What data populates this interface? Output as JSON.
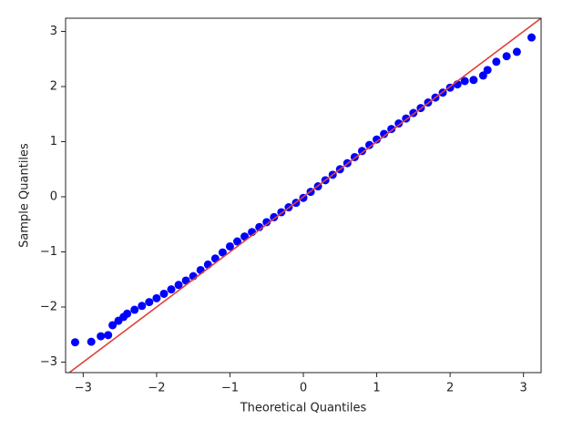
{
  "chart_data": {
    "type": "scatter",
    "x_label": "Theoretical Quantiles",
    "y_label": "Sample Quantiles",
    "xlim": [
      -3.24,
      3.24
    ],
    "ylim": [
      -3.19,
      3.24
    ],
    "xticks": [
      {
        "value": -3,
        "label": "−3"
      },
      {
        "value": -2,
        "label": "−2"
      },
      {
        "value": -1,
        "label": "−1"
      },
      0,
      1,
      2,
      3
    ],
    "yticks": [
      {
        "value": -3,
        "label": "−3"
      },
      {
        "value": -2,
        "label": "−2"
      },
      {
        "value": -1,
        "label": "−1"
      },
      0,
      1,
      2,
      3
    ],
    "series": [
      {
        "type": "scatter",
        "color": "#0000ff",
        "x": [
          -3.11,
          -2.89,
          -2.76,
          -2.66,
          -2.6,
          -2.52,
          -2.45,
          -2.4,
          -2.3,
          -2.2,
          -2.1,
          -2.0,
          -1.9,
          -1.8,
          -1.7,
          -1.6,
          -1.5,
          -1.4,
          -1.3,
          -1.2,
          -1.1,
          -1.0,
          -0.9,
          -0.8,
          -0.7,
          -0.6,
          -0.5,
          -0.4,
          -0.3,
          -0.2,
          -0.1,
          0,
          0.1,
          0.2,
          0.3,
          0.4,
          0.5,
          0.6,
          0.7,
          0.8,
          0.9,
          1.0,
          1.1,
          1.2,
          1.3,
          1.4,
          1.5,
          1.6,
          1.7,
          1.8,
          1.9,
          2.0,
          2.1,
          2.2,
          2.32,
          2.45,
          2.51,
          2.63,
          2.77,
          2.91,
          3.11
        ],
        "values": [
          -2.64,
          -2.63,
          -2.53,
          -2.51,
          -2.33,
          -2.25,
          -2.18,
          -2.12,
          -2.05,
          -1.98,
          -1.91,
          -1.84,
          -1.76,
          -1.68,
          -1.6,
          -1.52,
          -1.44,
          -1.33,
          -1.23,
          -1.12,
          -1.01,
          -0.9,
          -0.81,
          -0.72,
          -0.64,
          -0.55,
          -0.46,
          -0.37,
          -0.28,
          -0.19,
          -0.11,
          -0.02,
          0.09,
          0.19,
          0.3,
          0.4,
          0.5,
          0.61,
          0.72,
          0.83,
          0.94,
          1.04,
          1.14,
          1.23,
          1.33,
          1.42,
          1.52,
          1.61,
          1.71,
          1.8,
          1.89,
          1.98,
          2.04,
          2.1,
          2.12,
          2.2,
          2.3,
          2.45,
          2.55,
          2.63,
          2.89
        ]
      },
      {
        "type": "line",
        "color": "#e0403a",
        "x": [
          -3.24,
          3.24
        ],
        "values": [
          -3.24,
          3.24
        ]
      }
    ]
  }
}
